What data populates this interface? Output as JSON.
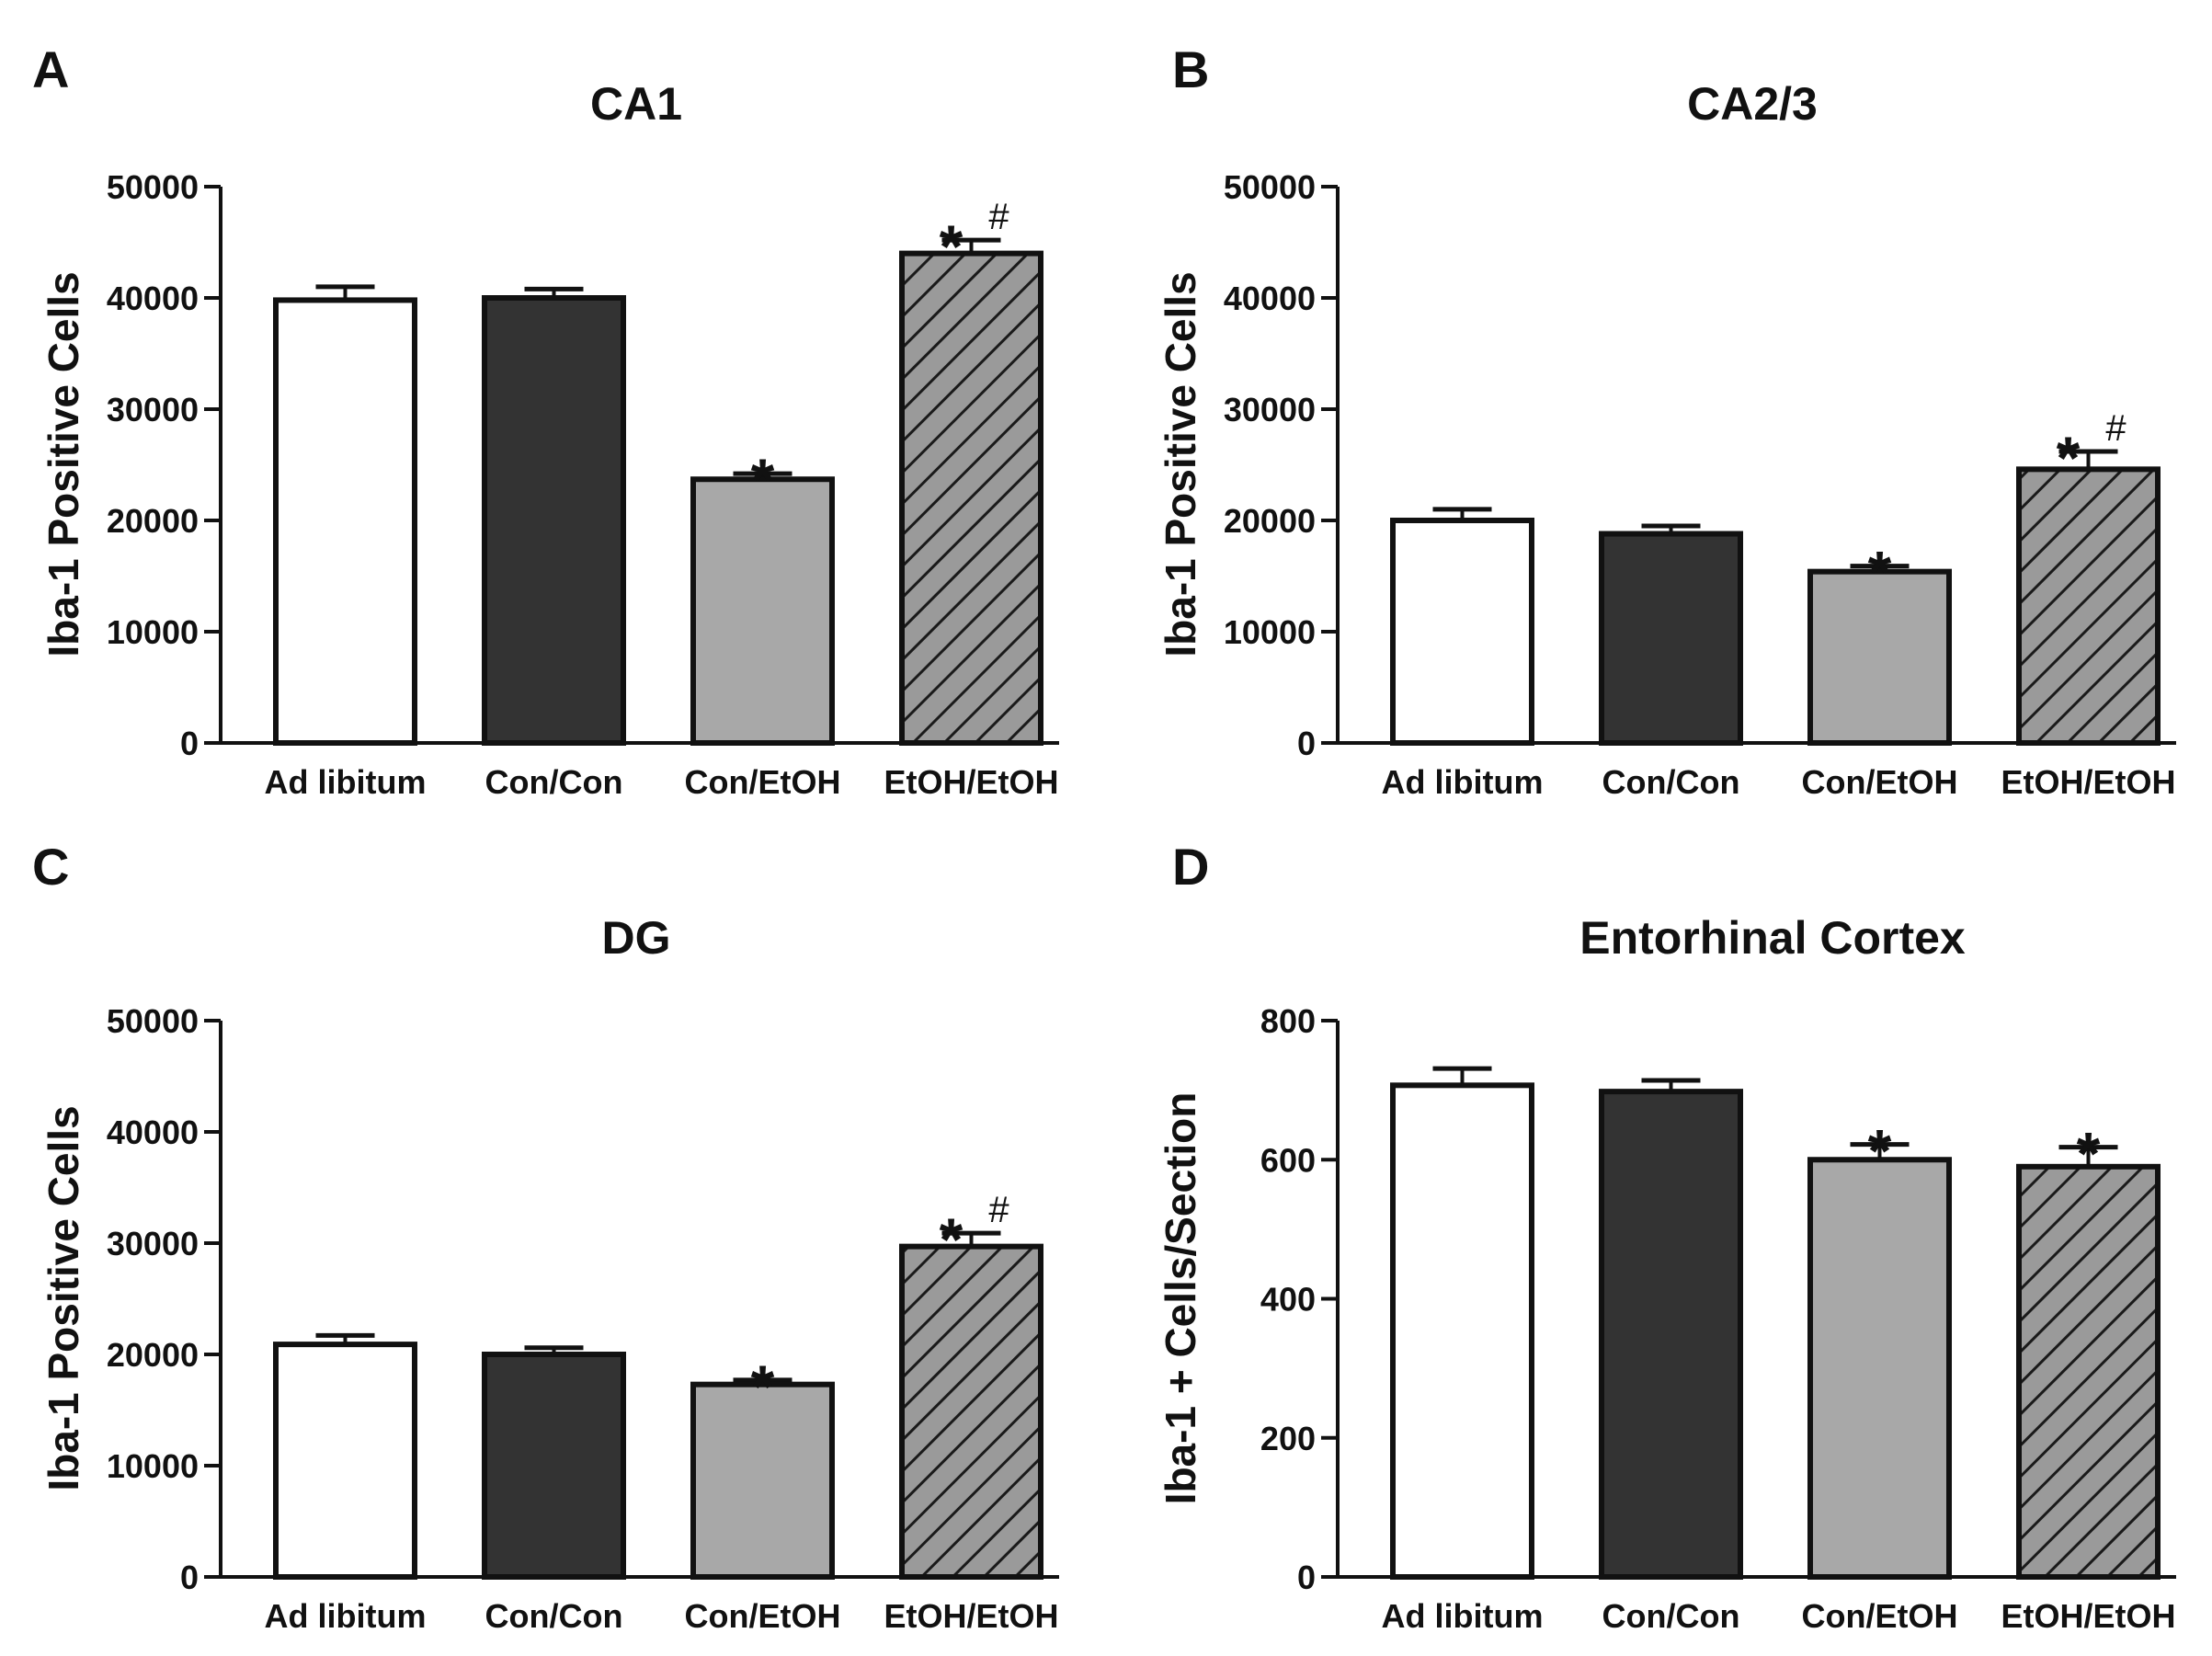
{
  "colors": {
    "axis": "#111111",
    "ad_libitum": "#ffffff",
    "con_con": "#333333",
    "con_etoh": "#a8a8a8",
    "etoh_etoh": "#9a9a9a",
    "hatch": "#1a1a1a"
  },
  "chart_data": [
    {
      "type": "bar",
      "panel": "A",
      "title": "CA1",
      "xlabel": "",
      "ylabel": "Iba-1 Positive Cells",
      "ylim": [
        0,
        50000
      ],
      "yticks": [
        0,
        10000,
        20000,
        30000,
        40000,
        50000
      ],
      "categories": [
        "Ad libitum",
        "Con/Con",
        "Con/EtOH",
        "EtOH/EtOH"
      ],
      "values": [
        39800,
        40000,
        23700,
        44000
      ],
      "errors": [
        1200,
        800,
        500,
        1200
      ],
      "annotations": [
        {
          "category": "Con/EtOH",
          "star": "*",
          "hash": ""
        },
        {
          "category": "EtOH/EtOH",
          "star": "*",
          "hash": "#"
        }
      ]
    },
    {
      "type": "bar",
      "panel": "B",
      "title": "CA2/3",
      "xlabel": "",
      "ylabel": "Iba-1 Positive Cells",
      "ylim": [
        0,
        50000
      ],
      "yticks": [
        0,
        10000,
        20000,
        30000,
        40000,
        50000
      ],
      "categories": [
        "Ad libitum",
        "Con/Con",
        "Con/EtOH",
        "EtOH/EtOH"
      ],
      "values": [
        20000,
        18800,
        15400,
        24600
      ],
      "errors": [
        1000,
        700,
        500,
        1600
      ],
      "annotations": [
        {
          "category": "Con/EtOH",
          "star": "*",
          "hash": ""
        },
        {
          "category": "EtOH/EtOH",
          "star": "*",
          "hash": "#"
        }
      ]
    },
    {
      "type": "bar",
      "panel": "C",
      "title": "DG",
      "xlabel": "",
      "ylabel": "Iba-1 Positive Cells",
      "ylim": [
        0,
        50000
      ],
      "yticks": [
        0,
        10000,
        20000,
        30000,
        40000,
        50000
      ],
      "categories": [
        "Ad libitum",
        "Con/Con",
        "Con/EtOH",
        "EtOH/EtOH"
      ],
      "values": [
        20900,
        20000,
        17300,
        29700
      ],
      "errors": [
        800,
        600,
        400,
        1200
      ],
      "annotations": [
        {
          "category": "Con/EtOH",
          "star": "*",
          "hash": ""
        },
        {
          "category": "EtOH/EtOH",
          "star": "*",
          "hash": "#"
        }
      ]
    },
    {
      "type": "bar",
      "panel": "D",
      "title": "Entorhinal Cortex",
      "xlabel": "",
      "ylabel": "Iba-1 + Cells/Section",
      "ylim": [
        0,
        800
      ],
      "yticks": [
        0,
        200,
        400,
        600,
        800
      ],
      "categories": [
        "Ad libitum",
        "Con/Con",
        "Con/EtOH",
        "EtOH/EtOH"
      ],
      "values": [
        707,
        698,
        600,
        590
      ],
      "errors": [
        24,
        16,
        22,
        28
      ],
      "annotations": [
        {
          "category": "Con/EtOH",
          "star": "*",
          "hash": ""
        },
        {
          "category": "EtOH/EtOH",
          "star": "*",
          "hash": ""
        }
      ]
    }
  ]
}
